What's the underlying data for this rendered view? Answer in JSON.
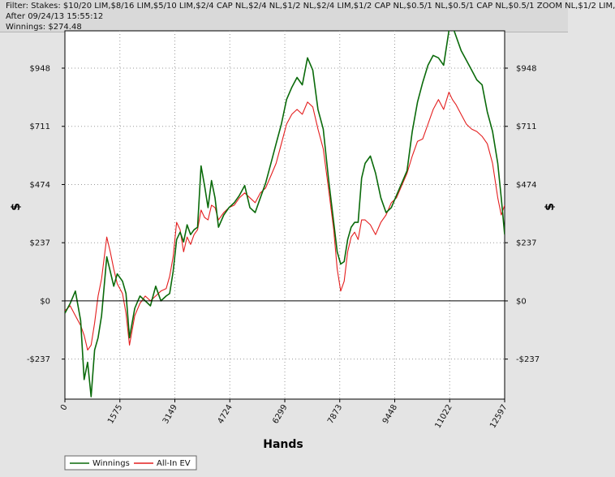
{
  "header": {
    "filter_line": "Filter: Stakes: $10/20 LIM,$8/16 LIM,$5/10 LIM,$2/4 CAP NL,$2/4 NL,$1/2 NL,$2/4 LIM,$1/2 CAP NL,$0.5/1 NL,$0.5/1 CAP NL,$0.5/1 ZOOM NL,$1/2 LIM,",
    "after_line": "After 09/24/13 15:55:12",
    "winnings_line": "Winnings: $274.48"
  },
  "colors": {
    "winnings": "#0a6a0a",
    "allin_ev": "#e41e1e",
    "background": "#ffffff",
    "grid": "#9a9a9a",
    "zero_line": "#000000"
  },
  "chart_data": {
    "type": "line",
    "title": "",
    "xlabel": "Hands",
    "ylabel": "$",
    "xlim": [
      0,
      12597
    ],
    "ylim": [
      -400,
      1100
    ],
    "x_ticks": [
      0,
      1575,
      3149,
      4724,
      6299,
      7873,
      9448,
      11022,
      12597
    ],
    "y_ticks": [
      -237,
      0,
      237,
      474,
      711,
      948
    ],
    "y_tick_labels": [
      "-$237",
      "$0",
      "$237",
      "$474",
      "$711",
      "$948"
    ],
    "grid": true,
    "legend_position": "bottom-left",
    "series": [
      {
        "name": "Winnings",
        "x": [
          0,
          150,
          300,
          450,
          550,
          650,
          750,
          850,
          950,
          1050,
          1200,
          1300,
          1400,
          1500,
          1650,
          1750,
          1850,
          2000,
          2150,
          2300,
          2450,
          2600,
          2750,
          2900,
          3000,
          3100,
          3200,
          3300,
          3400,
          3500,
          3600,
          3700,
          3800,
          3900,
          4000,
          4100,
          4200,
          4300,
          4400,
          4550,
          4700,
          4850,
          5000,
          5150,
          5300,
          5450,
          5600,
          5750,
          5900,
          6050,
          6200,
          6350,
          6500,
          6650,
          6800,
          6950,
          7100,
          7250,
          7400,
          7550,
          7700,
          7800,
          7900,
          8000,
          8100,
          8200,
          8300,
          8400,
          8500,
          8600,
          8750,
          8900,
          9050,
          9200,
          9350,
          9500,
          9650,
          9800,
          9950,
          10100,
          10250,
          10400,
          10550,
          10700,
          10850,
          11000,
          11100,
          11200,
          11350,
          11500,
          11650,
          11800,
          11950,
          12100,
          12250,
          12400,
          12500,
          12597
        ],
        "y": [
          -50,
          -10,
          40,
          -80,
          -320,
          -250,
          -390,
          -200,
          -150,
          -60,
          180,
          120,
          60,
          110,
          80,
          30,
          -150,
          -30,
          20,
          0,
          -20,
          60,
          0,
          20,
          30,
          120,
          250,
          280,
          240,
          310,
          270,
          290,
          300,
          550,
          470,
          380,
          490,
          420,
          300,
          350,
          380,
          400,
          430,
          470,
          380,
          360,
          420,
          480,
          560,
          640,
          720,
          820,
          870,
          910,
          880,
          990,
          940,
          780,
          700,
          500,
          320,
          200,
          150,
          160,
          250,
          300,
          320,
          320,
          500,
          560,
          590,
          520,
          420,
          360,
          380,
          430,
          480,
          530,
          690,
          810,
          890,
          960,
          1000,
          990,
          960,
          1100,
          1120,
          1080,
          1020,
          980,
          940,
          900,
          880,
          770,
          690,
          560,
          420,
          270
        ]
      },
      {
        "name": "All-In EV",
        "x": [
          0,
          150,
          300,
          450,
          550,
          650,
          750,
          850,
          950,
          1050,
          1200,
          1300,
          1400,
          1500,
          1650,
          1750,
          1850,
          2000,
          2150,
          2300,
          2450,
          2600,
          2750,
          2900,
          3000,
          3100,
          3200,
          3300,
          3400,
          3500,
          3600,
          3700,
          3800,
          3900,
          4000,
          4100,
          4200,
          4300,
          4400,
          4550,
          4700,
          4850,
          5000,
          5150,
          5300,
          5450,
          5600,
          5750,
          5900,
          6050,
          6200,
          6350,
          6500,
          6650,
          6800,
          6950,
          7100,
          7250,
          7400,
          7550,
          7700,
          7800,
          7900,
          8000,
          8100,
          8200,
          8300,
          8400,
          8500,
          8600,
          8750,
          8900,
          9050,
          9200,
          9350,
          9500,
          9650,
          9800,
          9950,
          10100,
          10250,
          10400,
          10550,
          10700,
          10850,
          11000,
          11100,
          11200,
          11350,
          11500,
          11650,
          11800,
          11950,
          12100,
          12250,
          12400,
          12500,
          12597
        ],
        "y": [
          -40,
          -20,
          -60,
          -100,
          -140,
          -200,
          -180,
          -90,
          20,
          90,
          260,
          200,
          130,
          70,
          30,
          -50,
          -180,
          -60,
          -10,
          20,
          0,
          20,
          40,
          50,
          100,
          180,
          320,
          290,
          200,
          260,
          230,
          270,
          290,
          370,
          340,
          330,
          390,
          380,
          330,
          360,
          380,
          390,
          420,
          440,
          420,
          400,
          440,
          460,
          510,
          560,
          640,
          720,
          760,
          780,
          760,
          810,
          790,
          700,
          620,
          460,
          290,
          130,
          40,
          80,
          200,
          260,
          280,
          250,
          330,
          330,
          310,
          270,
          320,
          350,
          400,
          420,
          470,
          520,
          590,
          650,
          660,
          720,
          780,
          820,
          780,
          850,
          820,
          800,
          760,
          720,
          700,
          690,
          670,
          640,
          560,
          420,
          350,
          390
        ]
      }
    ]
  }
}
